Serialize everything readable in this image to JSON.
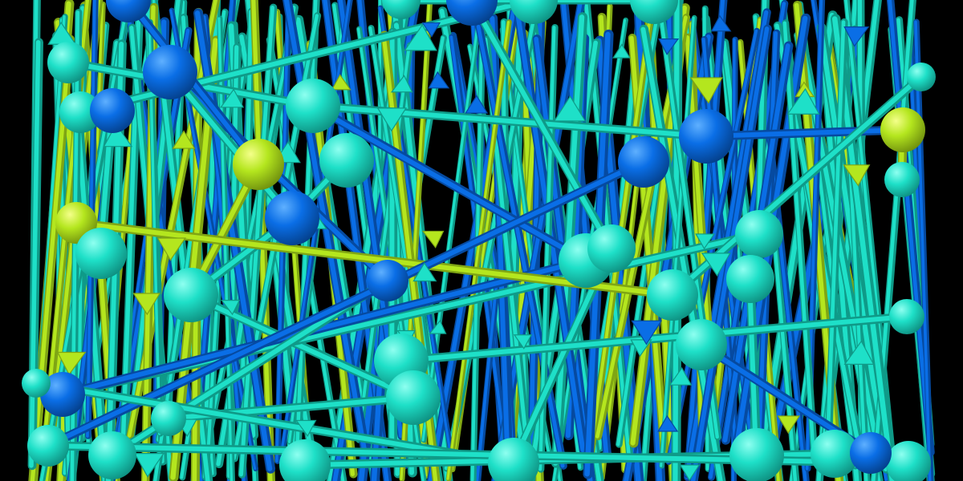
{
  "scene": {
    "background": "#000000",
    "palette": {
      "cyan": "#1ee0c8",
      "blue": "#0a6ee6",
      "lime": "#b4e61e"
    },
    "nodes": [
      {
        "id": "n1",
        "color": "blue"
      },
      {
        "id": "n2",
        "color": "cyan"
      },
      {
        "id": "n3",
        "color": "cyan"
      },
      {
        "id": "n4",
        "color": "blue"
      },
      {
        "id": "n5",
        "color": "blue"
      },
      {
        "id": "n6",
        "color": "cyan"
      },
      {
        "id": "n7",
        "color": "lime"
      },
      {
        "id": "n8",
        "color": "cyan"
      },
      {
        "id": "n9",
        "color": "cyan"
      },
      {
        "id": "n10",
        "color": "blue"
      },
      {
        "id": "n11",
        "color": "cyan"
      },
      {
        "id": "n12",
        "color": "lime"
      },
      {
        "id": "n13",
        "color": "blue"
      },
      {
        "id": "n14",
        "color": "cyan"
      },
      {
        "id": "n15",
        "color": "cyan"
      },
      {
        "id": "n16",
        "color": "blue"
      },
      {
        "id": "n17",
        "color": "blue"
      },
      {
        "id": "n18",
        "color": "cyan"
      },
      {
        "id": "n19",
        "color": "cyan"
      },
      {
        "id": "n20",
        "color": "cyan"
      },
      {
        "id": "n21",
        "color": "cyan"
      },
      {
        "id": "n22",
        "color": "blue"
      },
      {
        "id": "n23",
        "color": "lime"
      },
      {
        "id": "n24",
        "color": "cyan"
      },
      {
        "id": "n25",
        "color": "cyan"
      },
      {
        "id": "n26",
        "color": "cyan"
      },
      {
        "id": "n27",
        "color": "cyan"
      },
      {
        "id": "n28",
        "color": "cyan"
      },
      {
        "id": "n29",
        "color": "cyan"
      },
      {
        "id": "n30",
        "color": "cyan"
      },
      {
        "id": "n31",
        "color": "blue"
      },
      {
        "id": "n32",
        "color": "cyan"
      },
      {
        "id": "n33",
        "color": "cyan"
      },
      {
        "id": "n34",
        "color": "cyan"
      },
      {
        "id": "n35",
        "color": "cyan"
      },
      {
        "id": "n36",
        "color": "cyan"
      },
      {
        "id": "n37",
        "color": "blue"
      },
      {
        "id": "n38",
        "color": "cyan"
      },
      {
        "id": "n39",
        "color": "cyan"
      },
      {
        "id": "n40",
        "color": "cyan"
      },
      {
        "id": "n41",
        "color": "cyan"
      },
      {
        "id": "n42",
        "color": "cyan"
      }
    ],
    "edges": [
      {
        "from": "n2",
        "to": "n6",
        "color": "cyan"
      },
      {
        "from": "n6",
        "to": "n16",
        "color": "cyan"
      },
      {
        "from": "n6",
        "to": "n20",
        "color": "blue"
      },
      {
        "from": "n4",
        "to": "n22",
        "color": "blue"
      },
      {
        "from": "n4",
        "to": "n13",
        "color": "cyan"
      },
      {
        "from": "n7",
        "to": "n14",
        "color": "lime"
      },
      {
        "from": "n8",
        "to": "n13",
        "color": "cyan"
      },
      {
        "from": "n10",
        "to": "n21",
        "color": "cyan"
      },
      {
        "from": "n13",
        "to": "n14",
        "color": "cyan"
      },
      {
        "from": "n14",
        "to": "n28",
        "color": "cyan"
      },
      {
        "from": "n16",
        "to": "n23",
        "color": "blue"
      },
      {
        "from": "n19",
        "to": "n31",
        "color": "cyan"
      },
      {
        "from": "n20",
        "to": "n31",
        "color": "blue"
      },
      {
        "from": "n22",
        "to": "n33",
        "color": "cyan"
      },
      {
        "from": "n24",
        "to": "n34",
        "color": "cyan"
      },
      {
        "from": "n21",
        "to": "n29",
        "color": "cyan"
      },
      {
        "from": "n25",
        "to": "n38",
        "color": "cyan"
      },
      {
        "from": "n26",
        "to": "n37",
        "color": "blue"
      },
      {
        "from": "n27",
        "to": "n39",
        "color": "cyan"
      },
      {
        "from": "n28",
        "to": "n41",
        "color": "cyan"
      },
      {
        "from": "n3",
        "to": "n11",
        "color": "cyan"
      },
      {
        "from": "n5",
        "to": "n15",
        "color": "cyan"
      },
      {
        "from": "n9",
        "to": "n18",
        "color": "cyan"
      },
      {
        "from": "n12",
        "to": "n25",
        "color": "lime"
      },
      {
        "from": "n17",
        "to": "n32",
        "color": "blue"
      },
      {
        "from": "n23",
        "to": "n40",
        "color": "lime"
      },
      {
        "from": "n29",
        "to": "n42",
        "color": "cyan"
      },
      {
        "from": "n30",
        "to": "n36",
        "color": "cyan"
      },
      {
        "from": "n32",
        "to": "n35",
        "color": "cyan"
      },
      {
        "from": "n1",
        "to": "n7",
        "color": "blue"
      }
    ]
  }
}
